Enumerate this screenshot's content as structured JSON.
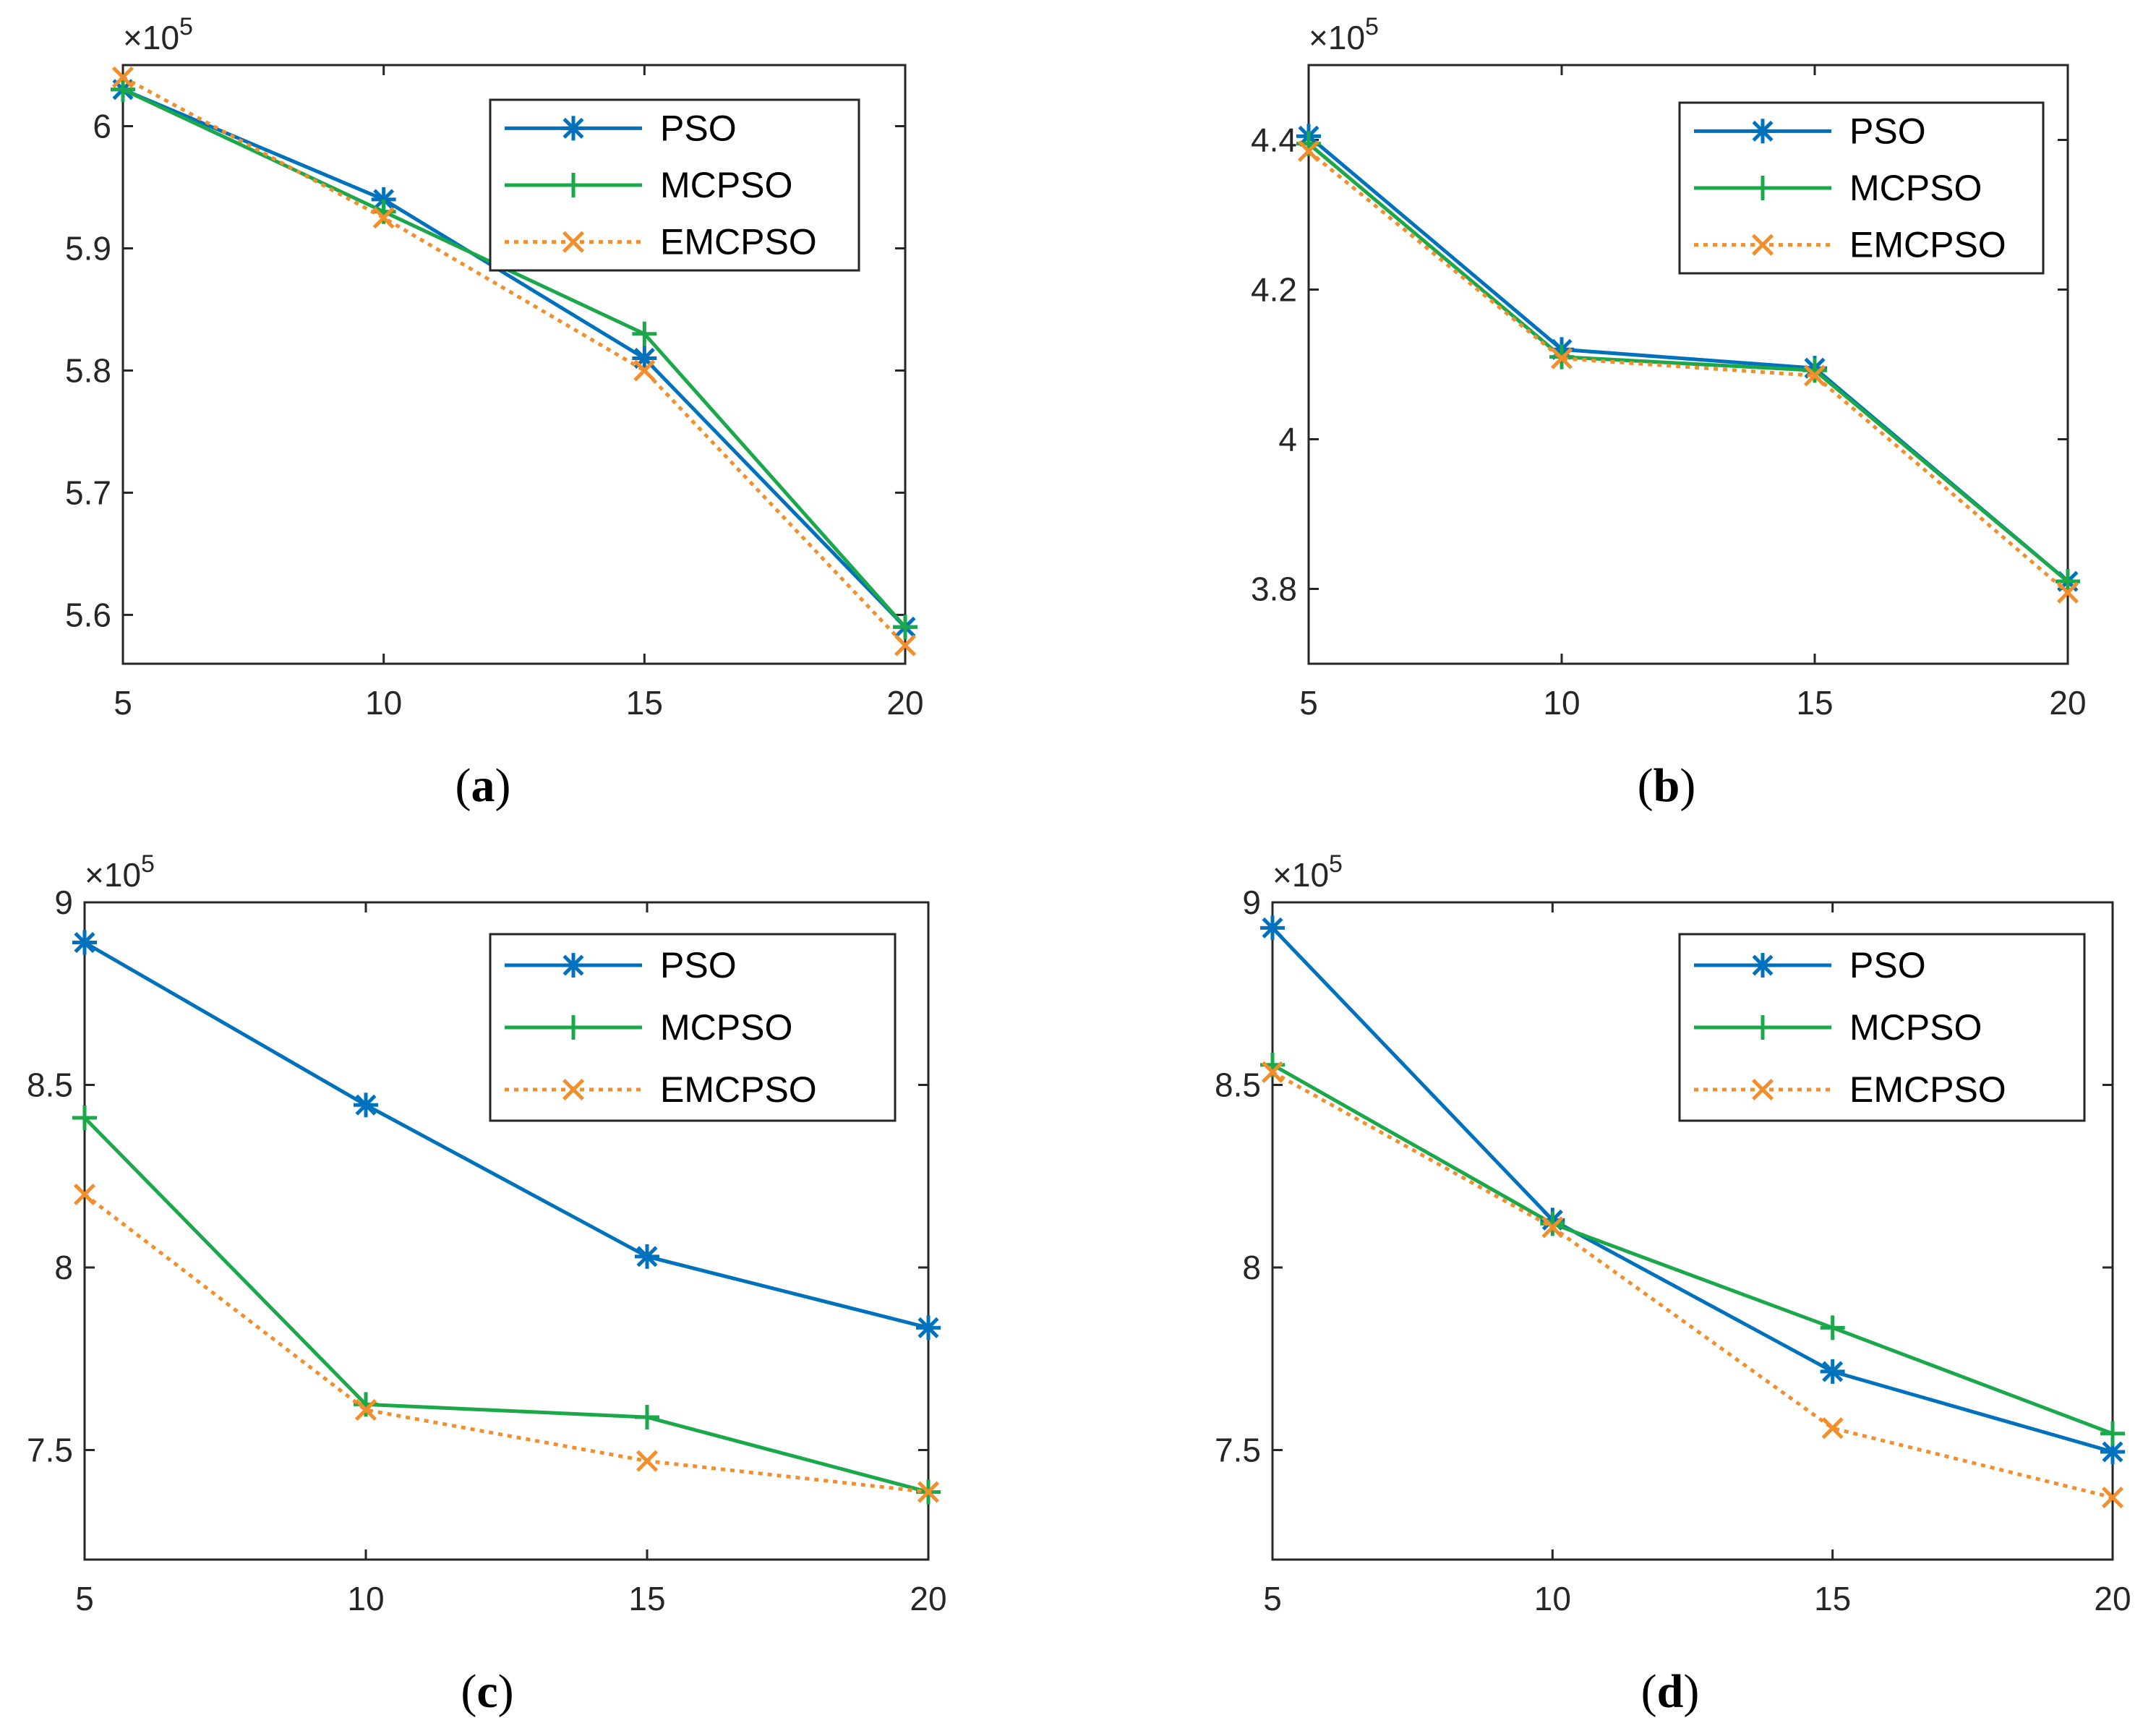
{
  "colors": {
    "PSO": "#0072BD",
    "MCPSO": "#1BA84A",
    "EMCPSO": "#F28E2B",
    "axis": "#262626"
  },
  "chart_data": [
    {
      "type": "line",
      "panel": "a",
      "caption": {
        "open": "(",
        "letter": "a",
        "close": ")"
      },
      "exponent": {
        "base": "×10",
        "power": "5"
      },
      "x": [
        5,
        10,
        15,
        20
      ],
      "xticks": [
        "5",
        "10",
        "15",
        "20"
      ],
      "xlim": [
        5,
        20
      ],
      "ylim": [
        5.56,
        6.05
      ],
      "yticks": [
        5.6,
        5.7,
        5.8,
        5.9,
        6.0
      ],
      "ytick_labels": [
        "5.6",
        "5.7",
        "5.8",
        "5.9",
        "6"
      ],
      "legend_position": "top-right",
      "series": [
        {
          "name": "PSO",
          "marker": "asterisk",
          "line": "solid",
          "values": [
            6.03,
            5.94,
            5.81,
            5.59
          ]
        },
        {
          "name": "MCPSO",
          "marker": "plus",
          "line": "solid",
          "values": [
            6.03,
            5.93,
            5.83,
            5.59
          ]
        },
        {
          "name": "EMCPSO",
          "marker": "x",
          "line": "dotted",
          "values": [
            6.04,
            5.925,
            5.8,
            5.575
          ]
        }
      ]
    },
    {
      "type": "line",
      "panel": "b",
      "caption": {
        "open": "(",
        "letter": "b",
        "close": ")"
      },
      "exponent": {
        "base": "×10",
        "power": "5"
      },
      "x": [
        5,
        10,
        15,
        20
      ],
      "xticks": [
        "5",
        "10",
        "15",
        "20"
      ],
      "xlim": [
        5,
        20
      ],
      "ylim": [
        3.7,
        4.5
      ],
      "yticks": [
        3.8,
        4.0,
        4.2,
        4.4
      ],
      "ytick_labels": [
        "3.8",
        "4",
        "4.2",
        "4.4"
      ],
      "legend_position": "top-right",
      "series": [
        {
          "name": "PSO",
          "marker": "asterisk",
          "line": "solid",
          "values": [
            4.405,
            4.12,
            4.095,
            3.81
          ]
        },
        {
          "name": "MCPSO",
          "marker": "plus",
          "line": "solid",
          "values": [
            4.395,
            4.11,
            4.092,
            3.81
          ]
        },
        {
          "name": "EMCPSO",
          "marker": "x",
          "line": "dotted",
          "values": [
            4.385,
            4.108,
            4.085,
            3.795
          ]
        }
      ]
    },
    {
      "type": "line",
      "panel": "c",
      "caption": {
        "open": "(",
        "letter": "c",
        "close": ")"
      },
      "exponent": {
        "base": "×10",
        "power": "5"
      },
      "x": [
        5,
        10,
        15,
        20
      ],
      "xticks": [
        "5",
        "10",
        "15",
        "20"
      ],
      "xlim": [
        5,
        20
      ],
      "ylim": [
        7.2,
        9.0
      ],
      "yticks": [
        7.5,
        8.0,
        8.5,
        9.0
      ],
      "ytick_labels": [
        "7.5",
        "8",
        "8.5",
        "9"
      ],
      "legend_position": "top-right",
      "series": [
        {
          "name": "PSO",
          "marker": "asterisk",
          "line": "solid",
          "values": [
            8.89,
            8.445,
            8.03,
            7.835
          ]
        },
        {
          "name": "MCPSO",
          "marker": "plus",
          "line": "solid",
          "values": [
            8.41,
            7.625,
            7.59,
            7.385
          ]
        },
        {
          "name": "EMCPSO",
          "marker": "x",
          "line": "dotted",
          "values": [
            8.2,
            7.61,
            7.47,
            7.385
          ]
        }
      ]
    },
    {
      "type": "line",
      "panel": "d",
      "caption": {
        "open": "(",
        "letter": "d",
        "close": ")"
      },
      "exponent": {
        "base": "×10",
        "power": "5"
      },
      "x": [
        5,
        10,
        15,
        20
      ],
      "xticks": [
        "5",
        "10",
        "15",
        "20"
      ],
      "xlim": [
        5,
        20
      ],
      "ylim": [
        7.2,
        9.0
      ],
      "yticks": [
        7.5,
        8.0,
        8.5,
        9.0
      ],
      "ytick_labels": [
        "7.5",
        "8",
        "8.5",
        "9"
      ],
      "legend_position": "top-right",
      "series": [
        {
          "name": "PSO",
          "marker": "asterisk",
          "line": "solid",
          "values": [
            8.93,
            8.13,
            7.715,
            7.495
          ]
        },
        {
          "name": "MCPSO",
          "marker": "plus",
          "line": "solid",
          "values": [
            8.555,
            8.12,
            7.835,
            7.545
          ]
        },
        {
          "name": "EMCPSO",
          "marker": "x",
          "line": "dotted",
          "values": [
            8.535,
            8.11,
            7.56,
            7.37
          ]
        }
      ]
    }
  ]
}
